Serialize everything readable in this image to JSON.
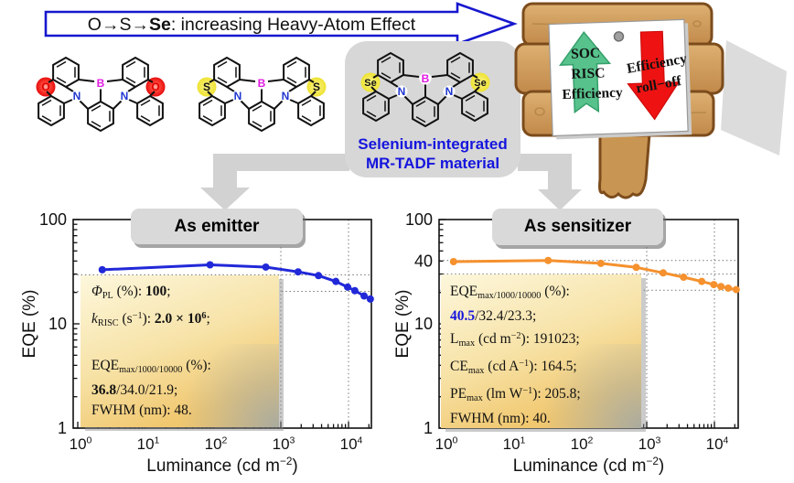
{
  "banner": {
    "segments": [
      {
        "t": "O→S→"
      },
      {
        "t": "Se",
        "b": 1
      },
      {
        "t": ": increasing Heavy-Atom Effect"
      }
    ],
    "outline_color": "#1717cf"
  },
  "molecules": [
    {
      "name": "oxygen-analog",
      "hetero": "O",
      "hetero_color": "#dd0000",
      "highlight": "red",
      "b_label": "B",
      "n_label": "N",
      "b_color": "#e31ae3",
      "n_color": "#2036d0"
    },
    {
      "name": "sulfur-analog",
      "hetero": "S",
      "hetero_color": "#111111",
      "highlight": "yellow",
      "b_label": "B",
      "n_label": "N",
      "b_color": "#e31ae3",
      "n_color": "#2036d0"
    },
    {
      "name": "selenium-analog",
      "hetero": "Se",
      "hetero_color": "#111111",
      "highlight": "yellow",
      "b_label": "B",
      "n_label": "N",
      "b_color": "#e31ae3",
      "n_color": "#2036d0"
    }
  ],
  "se_box": {
    "caption_line1": "Selenium-integrated",
    "caption_line2": "MR-TADF material",
    "caption_color": "#1515dd"
  },
  "signpost": {
    "up_arrow_lines": [
      "SOC",
      "RISC",
      "Efficiency"
    ],
    "up_arrow_color": "#57c28c",
    "down_arrow_lines": [
      "Efficiency",
      "roll−off"
    ],
    "down_arrow_color": "#ee1212"
  },
  "chart_data": [
    {
      "type": "line",
      "title": "As emitter",
      "ylabel": "EQE (%)",
      "xlabel_segments": [
        {
          "t": "Luminance (cd m"
        },
        {
          "t": "−2",
          "sup": 1
        },
        {
          "t": ")"
        }
      ],
      "x_ticks_exp": [
        0,
        1,
        2,
        3,
        4
      ],
      "y_ticks": [
        100,
        10,
        1
      ],
      "xlim": [
        1,
        22000
      ],
      "ylim": [
        1,
        100
      ],
      "grid": "dotted",
      "gridlines_h": [
        29.5,
        20.5
      ],
      "gridlines_v": [
        1000,
        10000
      ],
      "series": [
        {
          "name": "EQE-emitter",
          "color": "#2128d8",
          "x": [
            2.3,
            90,
            600,
            1800,
            3600,
            6500,
            9700,
            12400,
            17000,
            21000
          ],
          "y": [
            33,
            36.8,
            35,
            31.5,
            29,
            25.5,
            22.5,
            20.8,
            18.5,
            17.3
          ]
        }
      ],
      "inset": {
        "lines": [
          [
            {
              "t": "Φ",
              "i": 1
            },
            {
              "t": "PL",
              "sub": 1
            },
            {
              "t": " (%): "
            },
            {
              "t": "100",
              "b": 1
            },
            {
              "t": ";"
            }
          ],
          [
            {
              "t": "k",
              "i": 1
            },
            {
              "t": "RISC",
              "sub": 1
            },
            {
              "t": " (s"
            },
            {
              "t": "−1",
              "sup": 1
            },
            {
              "t": "): "
            },
            {
              "t": "2.0 × 10",
              "b": 1
            },
            {
              "t": "6",
              "b": 1,
              "sup": 1
            },
            {
              "t": ";"
            }
          ],
          [],
          [
            {
              "t": "EQE"
            },
            {
              "t": "max/1000/10000",
              "sub": 1
            },
            {
              "t": " (%):"
            }
          ],
          [
            {
              "t": "36.8",
              "b": 1
            },
            {
              "t": "/34.0/21.9;"
            }
          ],
          [
            {
              "t": "FWHM (nm): 48."
            }
          ]
        ]
      }
    },
    {
      "type": "line",
      "title": "As sensitizer",
      "ylabel": "EQE (%)",
      "xlabel_segments": [
        {
          "t": "Luminance (cd m"
        },
        {
          "t": "−2",
          "sup": 1
        },
        {
          "t": ")"
        }
      ],
      "x_ticks_exp": [
        0,
        1,
        2,
        3,
        4
      ],
      "y_ticks": [
        100,
        40,
        10,
        1
      ],
      "xlim": [
        1,
        22000
      ],
      "ylim": [
        1,
        100
      ],
      "grid": "dotted",
      "gridlines_h": [
        40.5,
        30,
        21
      ],
      "gridlines_v": [
        1000,
        10000
      ],
      "series": [
        {
          "name": "EQE-sensitizer",
          "color": "#f5912e",
          "x": [
            1.4,
            35,
            210,
            700,
            1750,
            3500,
            6500,
            9800,
            12500,
            16000,
            21000
          ],
          "y": [
            39.5,
            40.5,
            38,
            34.8,
            30.8,
            28,
            25.5,
            23.8,
            22.8,
            22,
            21.3
          ]
        }
      ],
      "inset": {
        "lines": [
          [
            {
              "t": "EQE"
            },
            {
              "t": "max/1000/10000",
              "sub": 1
            },
            {
              "t": " (%):"
            }
          ],
          [
            {
              "t": "40.5",
              "b": 1,
              "c": "#1515dd"
            },
            {
              "t": "/32.4/23.3;"
            }
          ],
          [
            {
              "t": "L"
            },
            {
              "t": "max",
              "sub": 1
            },
            {
              "t": " (cd m"
            },
            {
              "t": "−2",
              "sup": 1
            },
            {
              "t": "): 191023;"
            }
          ],
          [
            {
              "t": "CE"
            },
            {
              "t": "max",
              "sub": 1
            },
            {
              "t": " (cd A"
            },
            {
              "t": "−1",
              "sup": 1
            },
            {
              "t": "): 164.5;"
            }
          ],
          [
            {
              "t": "PE"
            },
            {
              "t": "max",
              "sub": 1
            },
            {
              "t": " (lm W"
            },
            {
              "t": "−1",
              "sup": 1
            },
            {
              "t": "): 205.8;"
            }
          ],
          [
            {
              "t": "FWHM (nm): 40."
            }
          ]
        ]
      }
    }
  ]
}
